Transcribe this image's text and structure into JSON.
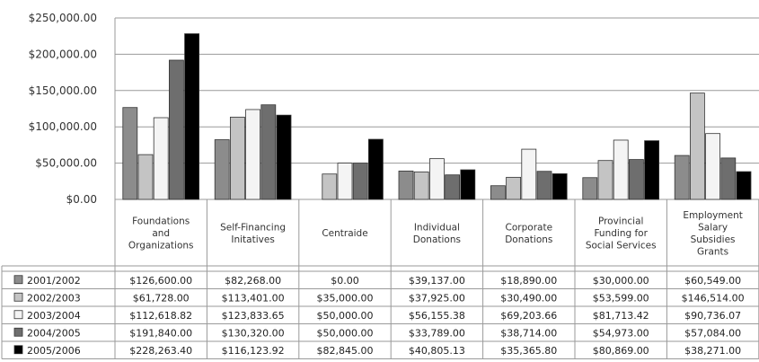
{
  "chart_data": {
    "type": "bar",
    "title": "",
    "xlabel": "",
    "ylabel": "",
    "ylim": [
      0,
      250000
    ],
    "grid": true,
    "legend_placement": "table-left",
    "y_ticks": [
      "$0.00",
      "$50,000.00",
      "$100,000.00",
      "$150,000.00",
      "$200,000.00",
      "$250,000.00"
    ],
    "categories": [
      [
        "Foundations",
        "and",
        "Organizations"
      ],
      [
        "Self-Financing",
        "Initatives"
      ],
      [
        "Centraide"
      ],
      [
        "Individual",
        "Donations"
      ],
      [
        "Corporate",
        "Donations"
      ],
      [
        "Provincial",
        "Funding for",
        "Social Services"
      ],
      [
        "Employment",
        "Salary",
        "Subsidies",
        "Grants"
      ]
    ],
    "series": [
      {
        "name": "2001/2002",
        "color": "#8c8c8c",
        "values": [
          126600.0,
          82268.0,
          0.0,
          39137.0,
          18890.0,
          30000.0,
          60549.0
        ],
        "labels": [
          "$126,600.00",
          "$82,268.00",
          "$0.00",
          "$39,137.00",
          "$18,890.00",
          "$30,000.00",
          "$60,549.00"
        ]
      },
      {
        "name": "2002/2003",
        "color": "#c4c4c4",
        "values": [
          61728.0,
          113401.0,
          35000.0,
          37925.0,
          30490.0,
          53599.0,
          146514.0
        ],
        "labels": [
          "$61,728.00",
          "$113,401.00",
          "$35,000.00",
          "$37,925.00",
          "$30,490.00",
          "$53,599.00",
          "$146,514.00"
        ]
      },
      {
        "name": "2003/2004",
        "color": "#f4f4f4",
        "values": [
          112618.82,
          123833.65,
          50000.0,
          56155.38,
          69203.66,
          81713.42,
          90736.07
        ],
        "labels": [
          "$112,618.82",
          "$123,833.65",
          "$50,000.00",
          "$56,155.38",
          "$69,203.66",
          "$81,713.42",
          "$90,736.07"
        ]
      },
      {
        "name": "2004/2005",
        "color": "#6e6e6e",
        "values": [
          191840.0,
          130320.0,
          50000.0,
          33789.0,
          38714.0,
          54973.0,
          57084.0
        ],
        "labels": [
          "$191,840.00",
          "$130,320.00",
          "$50,000.00",
          "$33,789.00",
          "$38,714.00",
          "$54,973.00",
          "$57,084.00"
        ]
      },
      {
        "name": "2005/2006",
        "color": "#000000",
        "values": [
          228263.4,
          116123.92,
          82845.0,
          40805.13,
          35365.8,
          80869.0,
          38271.0
        ],
        "labels": [
          "$228,263.40",
          "$116,123.92",
          "$82,845.00",
          "$40,805.13",
          "$35,365.80",
          "$80,869.00",
          "$38,271.00"
        ]
      }
    ]
  }
}
